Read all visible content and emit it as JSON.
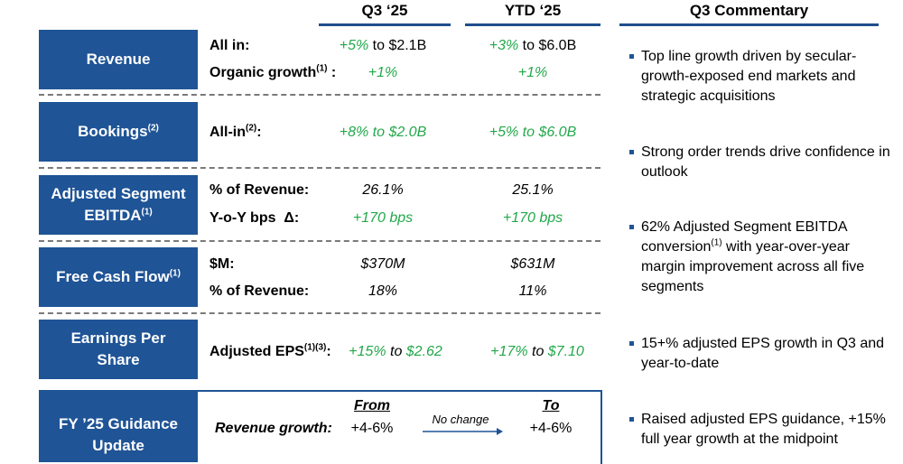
{
  "columns": {
    "q3": "Q3 ‘25",
    "ytd": "YTD ‘25",
    "commentary": "Q3 Commentary"
  },
  "rows": {
    "revenue": {
      "title": "Revenue",
      "lines": [
        {
          "label": "All in:",
          "q3_pct": "+5%",
          "q3_rest": " to $2.1B",
          "ytd_pct": "+3%",
          "ytd_rest": " to $6.0B"
        },
        {
          "label": "Organic growth",
          "label_sup": "(1)",
          "label_suffix": " :",
          "q3": "+1%",
          "ytd": "+1%"
        }
      ]
    },
    "bookings": {
      "title": "Bookings",
      "title_sup": "(2)",
      "label": "All-in",
      "label_sup": "(2)",
      "label_suffix": ":",
      "q3": "+8% to $2.0B",
      "ytd": "+5% to $6.0B"
    },
    "ebitda": {
      "title_line1": "Adjusted Segment",
      "title_line2": "EBITDA",
      "title_sup": "(1)",
      "lines": [
        {
          "label": "% of Revenue:",
          "q3": "26.1%",
          "ytd": "25.1%"
        },
        {
          "label": "Y-o-Y bps  Δ:",
          "q3": "+170 bps",
          "ytd": "+170 bps"
        }
      ]
    },
    "fcf": {
      "title": "Free Cash Flow",
      "title_sup": "(1)",
      "lines": [
        {
          "label": "$M:",
          "q3": "$370M",
          "ytd": "$631M"
        },
        {
          "label": "% of Revenue:",
          "q3": "18%",
          "ytd": "11%"
        }
      ]
    },
    "eps": {
      "title_line1": "Earnings Per",
      "title_line2": "Share",
      "label": "Adjusted EPS",
      "label_sup": "(1)(3)",
      "label_suffix": ":",
      "q3_pct": "+15%",
      "q3_mid": " to ",
      "q3_val": "$2.62",
      "ytd_pct": "+17%",
      "ytd_mid": " to ",
      "ytd_val": "$7.10"
    },
    "guidance": {
      "title_line1": "FY ’25 Guidance",
      "title_line2": "Update",
      "from": "From",
      "to": "To",
      "label": "Revenue growth:",
      "from_val": "+4-6%",
      "change": "No change",
      "to_val": "+4-6%"
    }
  },
  "commentary": [
    {
      "text": "Top line growth driven by secular-growth-exposed end markets and strategic acquisitions"
    },
    {
      "text": "Strong order trends drive confidence in outlook"
    },
    {
      "pre": "62% Adjusted Segment EBITDA conversion",
      "sup": "(1)",
      "post": " with year-over-year margin improvement across all five segments"
    },
    {
      "text": "15+% adjusted EPS growth in Q3 and year-to-date"
    },
    {
      "text": "Raised adjusted EPS guidance, +15% full year growth at the midpoint"
    }
  ],
  "colors": {
    "box": "#1f5496",
    "green": "#22a84a",
    "rule": "#1f4e8c"
  }
}
